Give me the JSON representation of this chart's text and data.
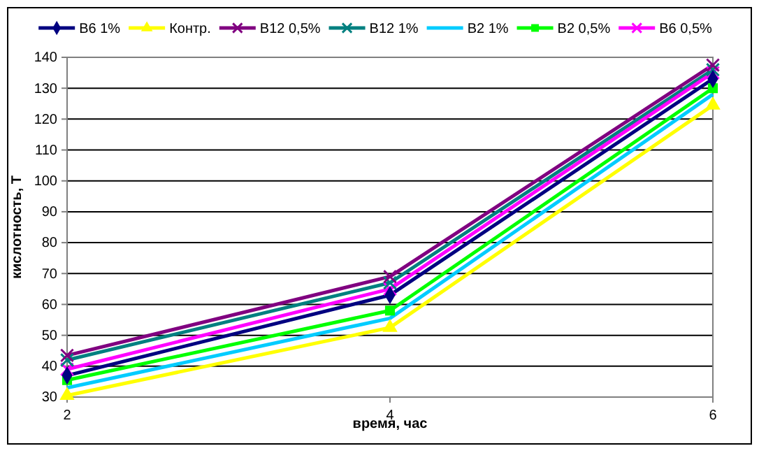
{
  "chart_data": {
    "type": "line",
    "xlabel": "время, час",
    "ylabel": "кислотность, Т",
    "x": [
      2,
      4,
      6
    ],
    "xlim": [
      2,
      6
    ],
    "xticks": [
      2,
      4,
      6
    ],
    "ylim": [
      30,
      140
    ],
    "yticks": [
      30,
      40,
      50,
      60,
      70,
      80,
      90,
      100,
      110,
      120,
      130,
      140
    ],
    "grid": "y",
    "legend": "top",
    "series": [
      {
        "name": "В6 1%",
        "color": "#000080",
        "marker": "diamond",
        "values": [
          37,
          63,
          133
        ]
      },
      {
        "name": "Контр.",
        "color": "#ffff00",
        "marker": "triangle",
        "values": [
          30.5,
          52.5,
          124.5
        ]
      },
      {
        "name": "В12 0,5%",
        "color": "#800080",
        "marker": "cross",
        "values": [
          43.5,
          69,
          137.5
        ]
      },
      {
        "name": "В12 1%",
        "color": "#008080",
        "marker": "cross",
        "values": [
          42,
          67,
          136
        ]
      },
      {
        "name": "В2 1%",
        "color": "#00ccff",
        "marker": "none",
        "values": [
          33,
          55.5,
          128
        ]
      },
      {
        "name": "В2 0,5%",
        "color": "#00ff00",
        "marker": "square",
        "values": [
          35.5,
          58,
          130
        ]
      },
      {
        "name": "В6 0,5%",
        "color": "#ff00ff",
        "marker": "cross",
        "values": [
          39,
          65,
          135
        ]
      }
    ]
  }
}
